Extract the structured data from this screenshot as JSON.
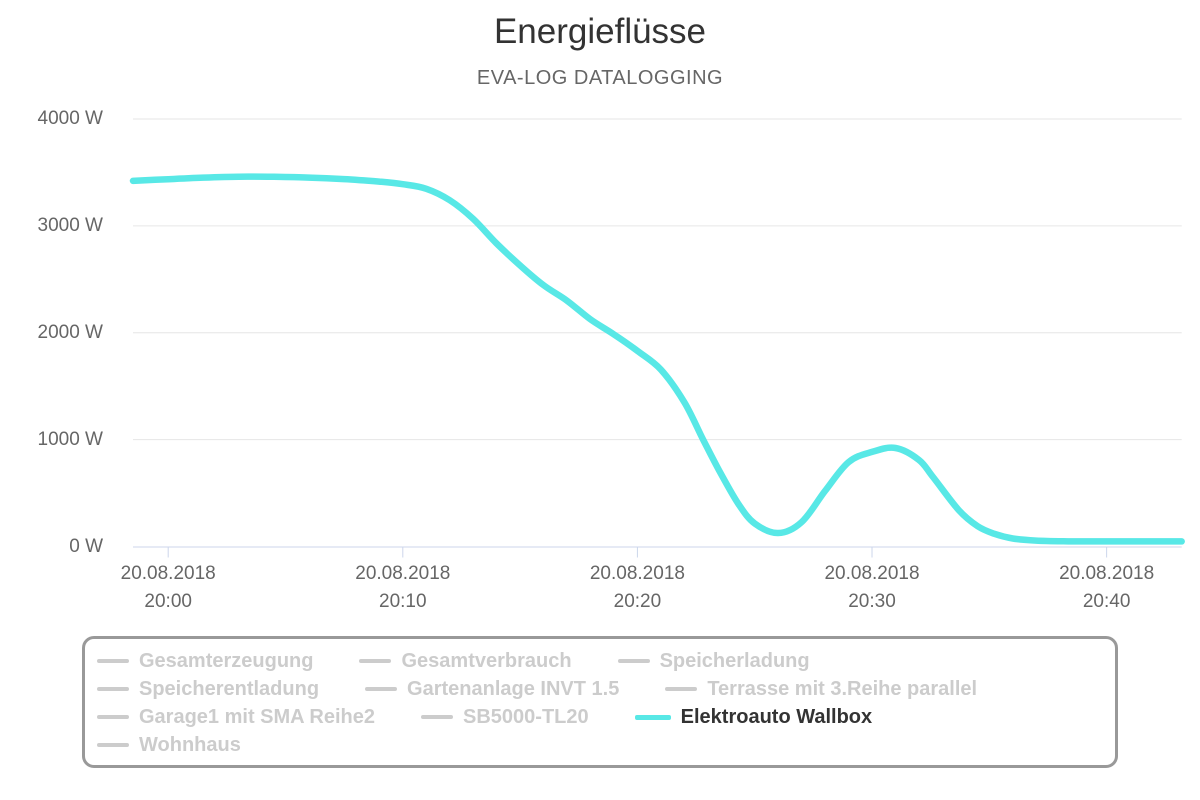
{
  "header": {
    "title": "Energieflüsse",
    "subtitle": "EVA-LOG DATALOGGING"
  },
  "colors": {
    "series_line": "#58e8e6",
    "inactive_legend": "#cccccc",
    "active_legend_text": "#333333",
    "legend_border": "#999999",
    "axis_line": "#ccd6eb",
    "gridline": "#e6e6e6",
    "axis_text": "#666666",
    "title_text": "#333333",
    "subtitle_text": "#666666"
  },
  "chart_data": {
    "type": "line",
    "title": "Energieflüsse",
    "subtitle": "EVA-LOG DATALOGGING",
    "xlabel": "",
    "ylabel": "",
    "grid": "horizontal-only",
    "legend_position": "bottom",
    "x_axis": {
      "kind": "datetime",
      "range_minutes": [
        -1.5,
        43.2
      ],
      "ticks": [
        {
          "date": "20.08.2018",
          "time": "20:00",
          "minute": 0
        },
        {
          "date": "20.08.2018",
          "time": "20:10",
          "minute": 10
        },
        {
          "date": "20.08.2018",
          "time": "20:20",
          "minute": 20
        },
        {
          "date": "20.08.2018",
          "time": "20:30",
          "minute": 30
        },
        {
          "date": "20.08.2018",
          "time": "20:40",
          "minute": 40
        }
      ]
    },
    "y_axis": {
      "unit": "W",
      "range": [
        0,
        4000
      ],
      "tick_values": [
        0,
        1000,
        2000,
        3000,
        4000
      ],
      "tick_labels": [
        "0 W",
        "1000 W",
        "2000 W",
        "3000 W",
        "4000 W"
      ]
    },
    "series": [
      {
        "name": "Elektroauto Wallbox",
        "color": "#58e8e6",
        "visible": true,
        "points_minute_watt": [
          [
            -1.5,
            3421
          ],
          [
            0,
            3437
          ],
          [
            1.5,
            3452
          ],
          [
            3,
            3460
          ],
          [
            4.5,
            3459
          ],
          [
            6,
            3452
          ],
          [
            7.5,
            3438
          ],
          [
            9,
            3414
          ],
          [
            10,
            3390
          ],
          [
            11,
            3347
          ],
          [
            12,
            3240
          ],
          [
            13,
            3065
          ],
          [
            14,
            2835
          ],
          [
            15,
            2630
          ],
          [
            16,
            2445
          ],
          [
            17,
            2300
          ],
          [
            18,
            2125
          ],
          [
            19,
            1985
          ],
          [
            20,
            1830
          ],
          [
            21,
            1655
          ],
          [
            22,
            1350
          ],
          [
            22.8,
            1000
          ],
          [
            23.5,
            705
          ],
          [
            24.3,
            400
          ],
          [
            25,
            215
          ],
          [
            26,
            126
          ],
          [
            27,
            228
          ],
          [
            28,
            520
          ],
          [
            29,
            790
          ],
          [
            30,
            885
          ],
          [
            31,
            922
          ],
          [
            32,
            810
          ],
          [
            32.6,
            650
          ],
          [
            33.7,
            340
          ],
          [
            34.5,
            190
          ],
          [
            35.2,
            120
          ],
          [
            36,
            75
          ],
          [
            37,
            55
          ],
          [
            38.5,
            48
          ],
          [
            40,
            48
          ],
          [
            41.5,
            48
          ],
          [
            43.2,
            48
          ]
        ]
      }
    ],
    "hidden_series": [
      "Gesamterzeugung",
      "Gesamtverbrauch",
      "Speicherladung",
      "Speicherentladung",
      "Gartenanlage INVT 1.5",
      "Terrasse mit 3.Reihe parallel",
      "Garage1 mit SMA Reihe2",
      "SB5000-TL20",
      "Wohnhaus"
    ]
  },
  "legend": {
    "rows": [
      [
        {
          "label": "Gesamterzeugung",
          "active": false
        },
        {
          "label": "Gesamtverbrauch",
          "active": false
        },
        {
          "label": "Speicherladung",
          "active": false
        }
      ],
      [
        {
          "label": "Speicherentladung",
          "active": false
        },
        {
          "label": "Gartenanlage INVT 1.5",
          "active": false
        },
        {
          "label": "Terrasse mit 3.Reihe parallel",
          "active": false
        }
      ],
      [
        {
          "label": "Garage1 mit SMA Reihe2",
          "active": false
        },
        {
          "label": "SB5000-TL20",
          "active": false
        },
        {
          "label": "Elektroauto Wallbox",
          "active": true
        }
      ],
      [
        {
          "label": "Wohnhaus",
          "active": false
        }
      ]
    ]
  }
}
